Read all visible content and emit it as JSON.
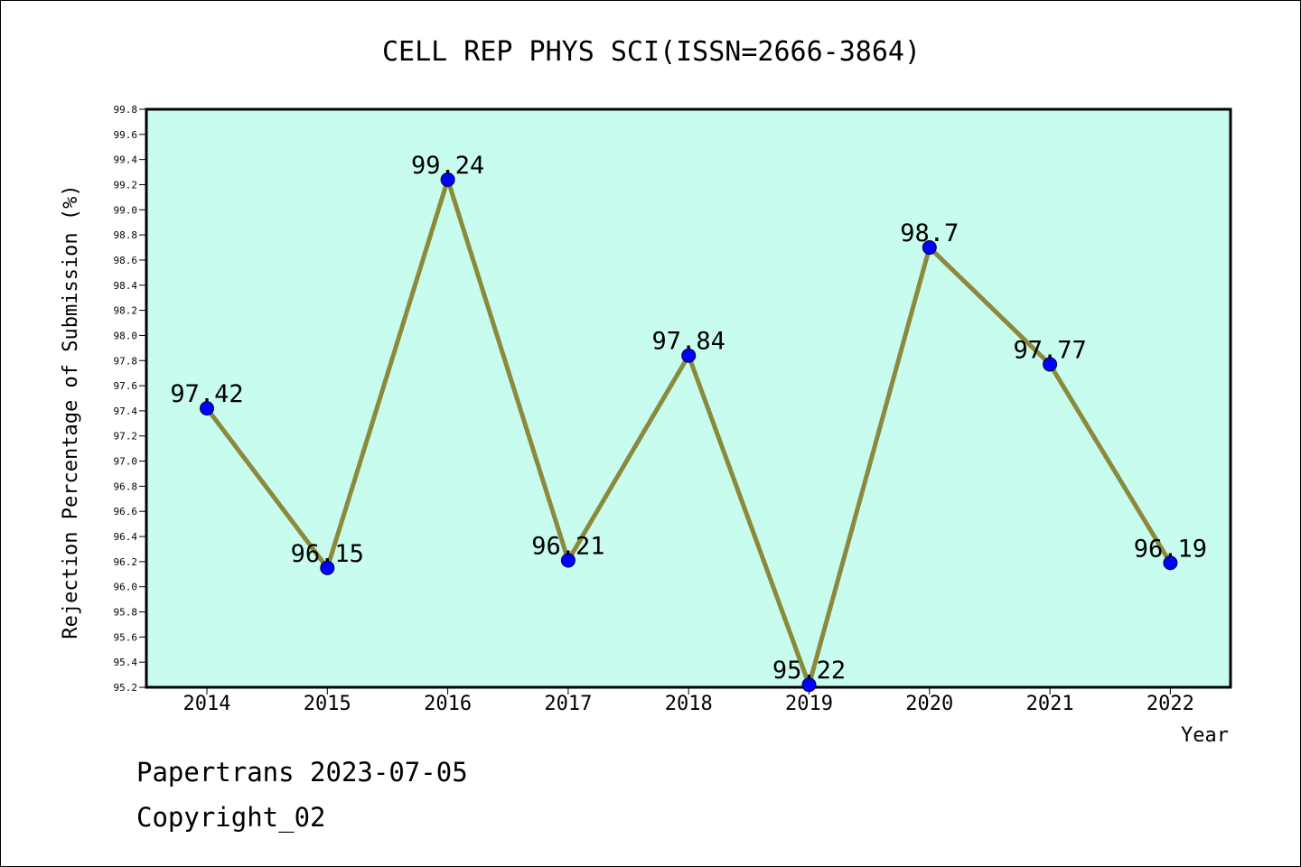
{
  "chart_data": {
    "type": "line",
    "title": "CELL REP PHYS SCI(ISSN=2666-3864)",
    "xlabel": "Year",
    "ylabel": "Rejection Percentage of Submission (%)",
    "categories": [
      "2014",
      "2015",
      "2016",
      "2017",
      "2018",
      "2019",
      "2020",
      "2021",
      "2022"
    ],
    "values": [
      97.42,
      96.15,
      99.24,
      96.21,
      97.84,
      95.22,
      98.7,
      97.77,
      96.19
    ],
    "data_labels": [
      "97.42",
      "96.15",
      "99.24",
      "96.21",
      "97.84",
      "95.22",
      "98.7",
      "97.77",
      "96.19"
    ],
    "ylim": [
      95.2,
      99.8
    ],
    "yticks": [
      "95.2",
      "95.4",
      "95.6",
      "95.8",
      "96.0",
      "96.2",
      "96.4",
      "96.6",
      "96.8",
      "97.0",
      "97.2",
      "97.4",
      "97.6",
      "97.8",
      "98.0",
      "98.2",
      "98.4",
      "98.6",
      "98.8",
      "99.0",
      "99.2",
      "99.4",
      "99.6",
      "99.8"
    ],
    "grid": false,
    "legend": "none",
    "colors": {
      "plot_background": "#c8fcee",
      "line": "#8b8a3c",
      "marker": "#0000ff"
    }
  },
  "footer": {
    "line1": "Papertrans 2023-07-05",
    "line2": "Copyright_02"
  }
}
